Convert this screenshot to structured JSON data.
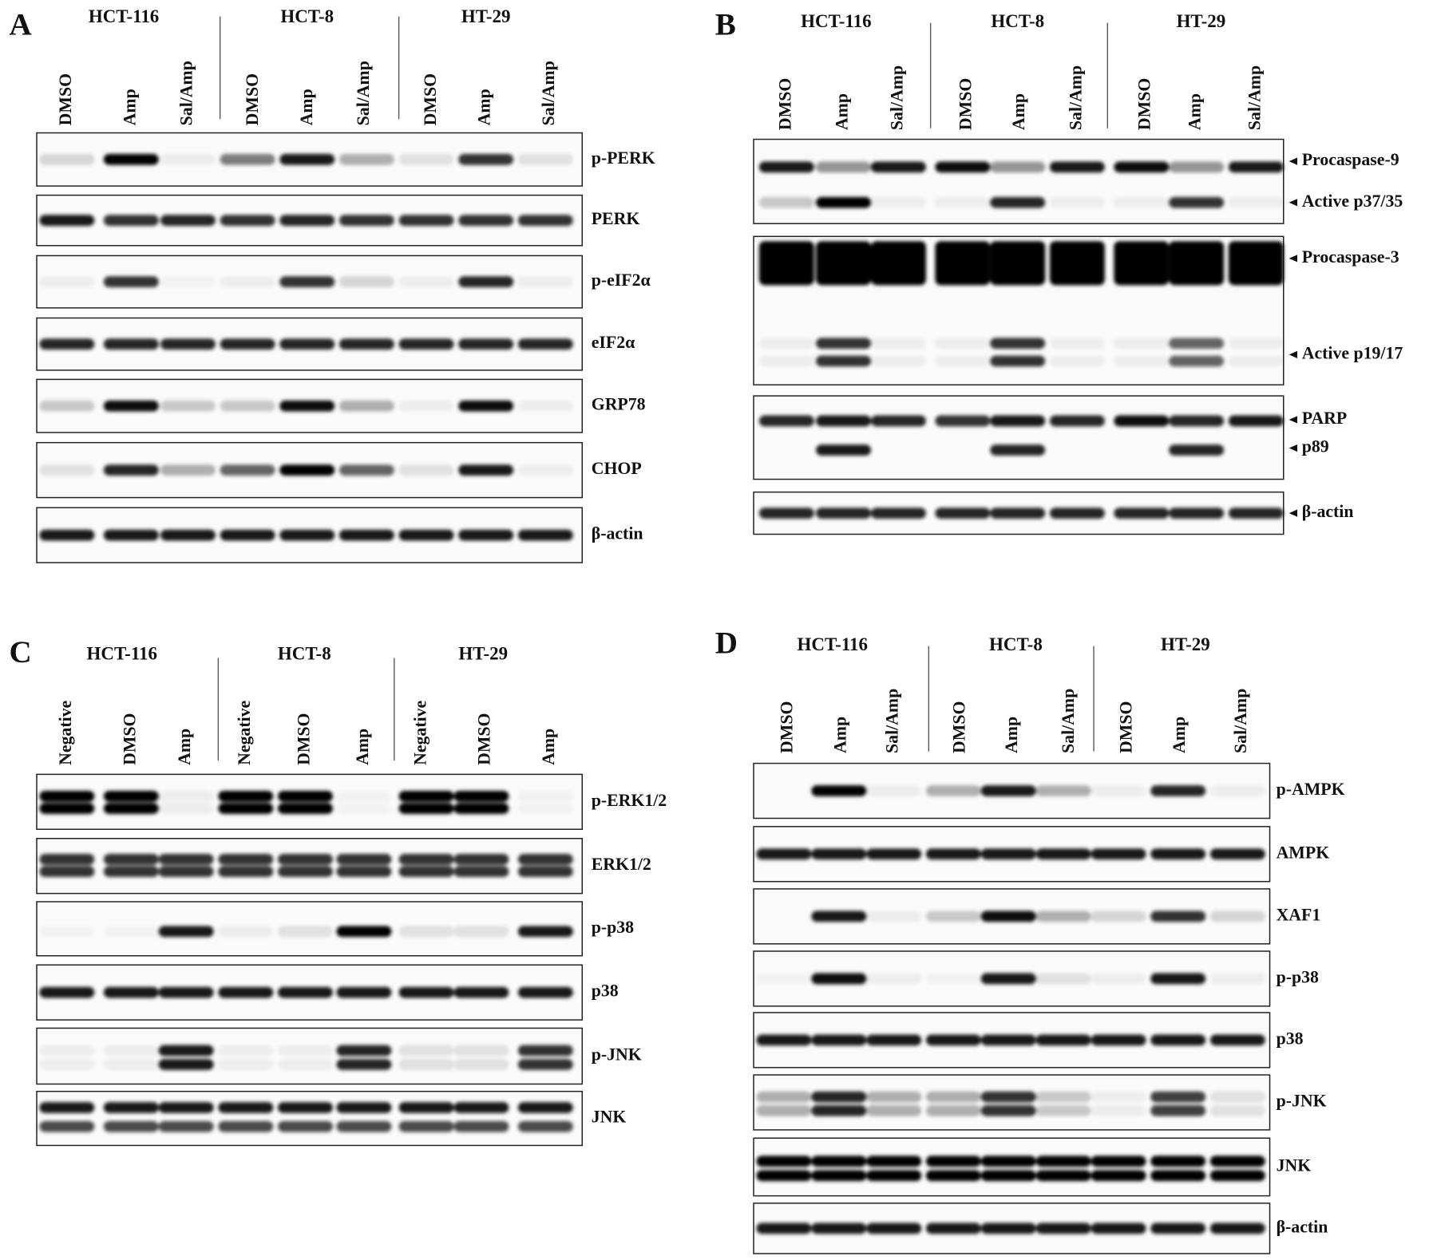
{
  "panels": [
    {
      "letter": "A",
      "cell_lines": [
        "HCT-116",
        "HCT-8",
        "HT-29"
      ],
      "lanes": [
        "DMSO",
        "Amp",
        "Sal/Amp",
        "DMSO",
        "Amp",
        "Sal/Amp",
        "DMSO",
        "Amp",
        "Sal/Amp"
      ],
      "blots": [
        {
          "labels": [
            "p-PERK"
          ]
        },
        {
          "labels": [
            "PERK"
          ]
        },
        {
          "labels": [
            "p-eIF2α"
          ]
        },
        {
          "labels": [
            "eIF2α"
          ]
        },
        {
          "labels": [
            "GRP78"
          ]
        },
        {
          "labels": [
            "CHOP"
          ]
        },
        {
          "labels": [
            "β-actin"
          ]
        }
      ]
    },
    {
      "letter": "B",
      "cell_lines": [
        "HCT-116",
        "HCT-8",
        "HT-29"
      ],
      "lanes": [
        "DMSO",
        "Amp",
        "Sal/Amp",
        "DMSO",
        "Amp",
        "Sal/Amp",
        "DMSO",
        "Amp",
        "Sal/Amp"
      ],
      "blots": [
        {
          "labels": [
            "Procaspase-9",
            "Active p37/35"
          ]
        },
        {
          "labels": [
            "Procaspase-3",
            "Active p19/17"
          ]
        },
        {
          "labels": [
            "PARP",
            "p89"
          ]
        },
        {
          "labels": [
            "β-actin"
          ]
        }
      ]
    },
    {
      "letter": "C",
      "cell_lines": [
        "HCT-116",
        "HCT-8",
        "HT-29"
      ],
      "lanes": [
        "Negative",
        "DMSO",
        "Amp",
        "Negative",
        "DMSO",
        "Amp",
        "Negative",
        "DMSO",
        "Amp"
      ],
      "blots": [
        {
          "labels": [
            "p-ERK1/2"
          ]
        },
        {
          "labels": [
            "ERK1/2"
          ]
        },
        {
          "labels": [
            "p-p38"
          ]
        },
        {
          "labels": [
            "p38"
          ]
        },
        {
          "labels": [
            "p-JNK"
          ]
        },
        {
          "labels": [
            "JNK"
          ]
        }
      ]
    },
    {
      "letter": "D",
      "cell_lines": [
        "HCT-116",
        "HCT-8",
        "HT-29"
      ],
      "lanes": [
        "DMSO",
        "Amp",
        "Sal/Amp",
        "DMSO",
        "Amp",
        "Sal/Amp",
        "DMSO",
        "Amp",
        "Sal/Amp"
      ],
      "blots": [
        {
          "labels": [
            "p-AMPK"
          ]
        },
        {
          "labels": [
            "AMPK"
          ]
        },
        {
          "labels": [
            "XAF1"
          ]
        },
        {
          "labels": [
            "p-p38"
          ]
        },
        {
          "labels": [
            "p38"
          ]
        },
        {
          "labels": [
            "p-JNK"
          ]
        },
        {
          "labels": [
            "JNK"
          ]
        },
        {
          "labels": [
            "β-actin"
          ]
        }
      ]
    }
  ]
}
